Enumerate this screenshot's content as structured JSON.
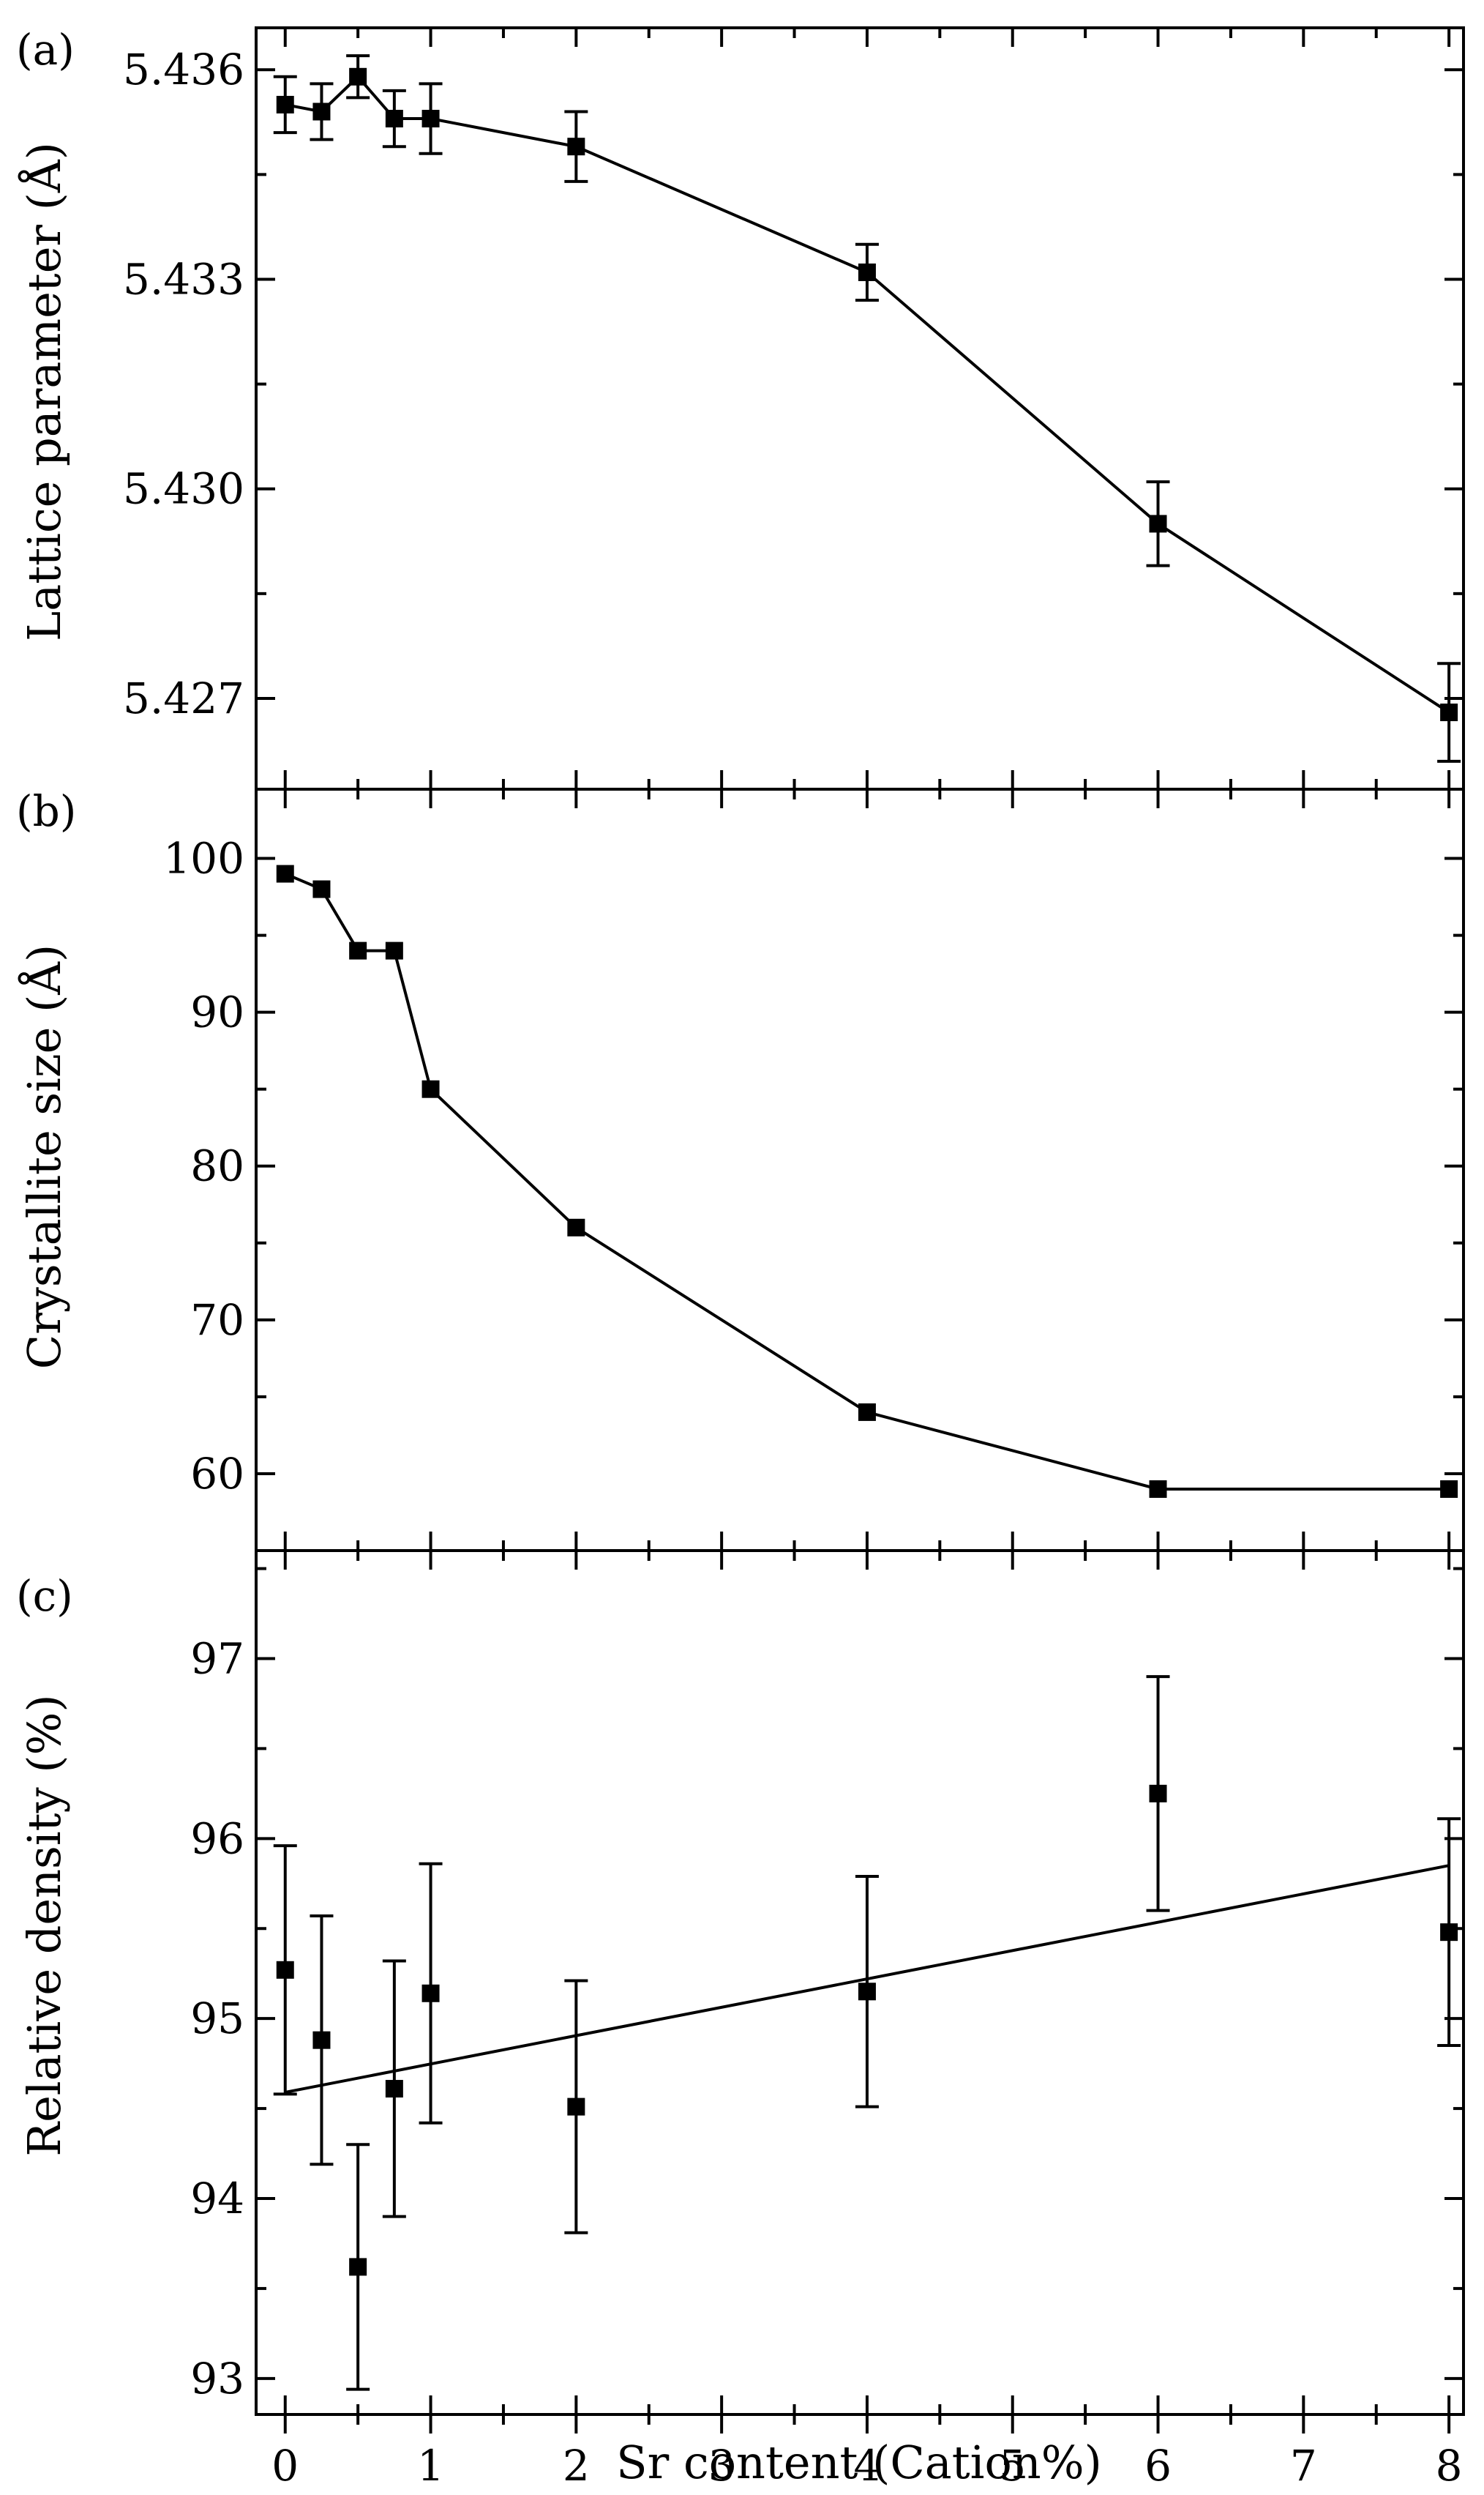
{
  "figure": {
    "xlabel": "Sr content (Cation%)",
    "x_ticks": [
      0,
      1,
      2,
      3,
      4,
      5,
      6,
      7,
      8
    ],
    "x_tick_labels": [
      "0",
      "1",
      "2",
      "3",
      "4",
      "5",
      "6",
      "7",
      "8"
    ]
  },
  "chart_data": [
    {
      "type": "line",
      "panel_label": "(a)",
      "ylabel": "Lattice parameter (Å)",
      "xlim": [
        -0.2,
        8.1
      ],
      "ylim": [
        5.4257,
        5.4366
      ],
      "y_ticks": [
        5.427,
        5.43,
        5.433,
        5.436
      ],
      "y_tick_labels": [
        "5.427",
        "5.430",
        "5.433",
        "5.436"
      ],
      "x": [
        0,
        0.25,
        0.5,
        0.75,
        1,
        2,
        4,
        6,
        8
      ],
      "y": [
        5.4355,
        5.4354,
        5.4359,
        5.4353,
        5.4353,
        5.4349,
        5.4331,
        5.4295,
        5.4268
      ],
      "yerr": [
        0.0004,
        0.0004,
        0.0003,
        0.0004,
        0.0005,
        0.0005,
        0.0004,
        0.0006,
        0.0007
      ],
      "series_style": "connected markers with error bars"
    },
    {
      "type": "line",
      "panel_label": "(b)",
      "ylabel": "Crystallite size (Å)",
      "xlim": [
        -0.2,
        8.1
      ],
      "ylim": [
        55,
        104.5
      ],
      "y_ticks": [
        60,
        70,
        80,
        90,
        100
      ],
      "y_tick_labels": [
        "60",
        "70",
        "80",
        "90",
        "100"
      ],
      "x": [
        0,
        0.25,
        0.5,
        0.75,
        1,
        2,
        4,
        6,
        8
      ],
      "y": [
        99,
        98,
        94,
        94,
        85,
        76,
        64,
        59,
        59
      ],
      "series_style": "connected markers"
    },
    {
      "type": "scatter",
      "panel_label": "(c)",
      "ylabel": "Relative density (%)",
      "xlim": [
        -0.2,
        8.1
      ],
      "ylim": [
        92.8,
        97.6
      ],
      "y_ticks": [
        93,
        94,
        95,
        96,
        97
      ],
      "y_tick_labels": [
        "93",
        "94",
        "95",
        "96",
        "97"
      ],
      "x": [
        0,
        0.25,
        0.5,
        0.75,
        1,
        2,
        4,
        6,
        8
      ],
      "y": [
        95.27,
        94.88,
        93.62,
        94.61,
        95.14,
        94.51,
        95.15,
        96.25,
        95.48
      ],
      "yerr": [
        0.69,
        0.69,
        0.68,
        0.71,
        0.72,
        0.7,
        0.64,
        0.65,
        0.63
      ],
      "fit_line": {
        "x": [
          0,
          8
        ],
        "y": [
          94.59,
          95.85
        ]
      },
      "series_style": "markers with error bars and linear fit"
    }
  ]
}
